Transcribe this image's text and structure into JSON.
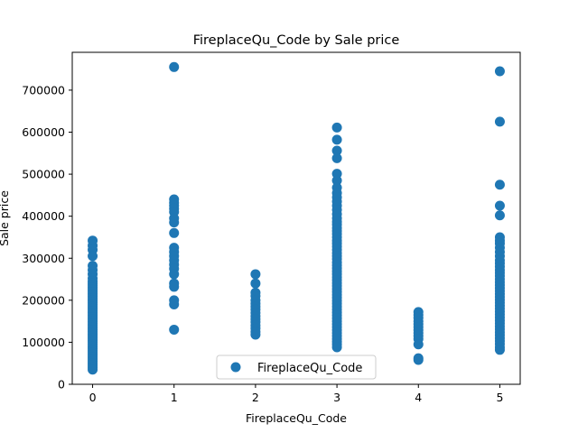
{
  "chart_data": {
    "type": "scatter",
    "title": "FireplaceQu_Code by Sale price",
    "xlabel": "FireplaceQu_Code",
    "ylabel": "Sale price",
    "xlim": [
      -0.25,
      5.25
    ],
    "ylim": [
      0,
      790000
    ],
    "x_ticks": [
      0,
      1,
      2,
      3,
      4,
      5
    ],
    "y_ticks": [
      0,
      100000,
      200000,
      300000,
      400000,
      500000,
      600000,
      700000
    ],
    "legend": {
      "label": "FireplaceQu_Code",
      "placement": "lower-center"
    },
    "marker_color": "#1f77b4",
    "grid": false,
    "series": [
      {
        "name": "FireplaceQu_Code",
        "points": [
          [
            0,
            342000
          ],
          [
            0,
            330000
          ],
          [
            0,
            320000
          ],
          [
            0,
            305000
          ],
          [
            0,
            282000
          ],
          [
            0,
            272000
          ],
          [
            0,
            262000
          ],
          [
            0,
            252000
          ],
          [
            0,
            245000
          ],
          [
            0,
            240000
          ],
          [
            0,
            235000
          ],
          [
            0,
            230000
          ],
          [
            0,
            225000
          ],
          [
            0,
            220000
          ],
          [
            0,
            215000
          ],
          [
            0,
            210000
          ],
          [
            0,
            205000
          ],
          [
            0,
            200000
          ],
          [
            0,
            195000
          ],
          [
            0,
            190000
          ],
          [
            0,
            185000
          ],
          [
            0,
            180000
          ],
          [
            0,
            175000
          ],
          [
            0,
            170000
          ],
          [
            0,
            165000
          ],
          [
            0,
            160000
          ],
          [
            0,
            155000
          ],
          [
            0,
            150000
          ],
          [
            0,
            145000
          ],
          [
            0,
            140000
          ],
          [
            0,
            135000
          ],
          [
            0,
            130000
          ],
          [
            0,
            125000
          ],
          [
            0,
            120000
          ],
          [
            0,
            115000
          ],
          [
            0,
            110000
          ],
          [
            0,
            105000
          ],
          [
            0,
            100000
          ],
          [
            0,
            95000
          ],
          [
            0,
            90000
          ],
          [
            0,
            85000
          ],
          [
            0,
            80000
          ],
          [
            0,
            75000
          ],
          [
            0,
            70000
          ],
          [
            0,
            65000
          ],
          [
            0,
            60000
          ],
          [
            0,
            55000
          ],
          [
            0,
            50000
          ],
          [
            0,
            45000
          ],
          [
            0,
            40000
          ],
          [
            0,
            35000
          ],
          [
            1,
            755000
          ],
          [
            1,
            440000
          ],
          [
            1,
            432000
          ],
          [
            1,
            425000
          ],
          [
            1,
            418000
          ],
          [
            1,
            410000
          ],
          [
            1,
            395000
          ],
          [
            1,
            385000
          ],
          [
            1,
            360000
          ],
          [
            1,
            325000
          ],
          [
            1,
            315000
          ],
          [
            1,
            305000
          ],
          [
            1,
            295000
          ],
          [
            1,
            285000
          ],
          [
            1,
            275000
          ],
          [
            1,
            262000
          ],
          [
            1,
            240000
          ],
          [
            1,
            232000
          ],
          [
            1,
            200000
          ],
          [
            1,
            190000
          ],
          [
            1,
            130000
          ],
          [
            2,
            262000
          ],
          [
            2,
            240000
          ],
          [
            2,
            218000
          ],
          [
            2,
            210000
          ],
          [
            2,
            200000
          ],
          [
            2,
            192000
          ],
          [
            2,
            185000
          ],
          [
            2,
            178000
          ],
          [
            2,
            170000
          ],
          [
            2,
            162000
          ],
          [
            2,
            155000
          ],
          [
            2,
            148000
          ],
          [
            2,
            140000
          ],
          [
            2,
            133000
          ],
          [
            2,
            125000
          ],
          [
            2,
            118000
          ],
          [
            3,
            611000
          ],
          [
            3,
            582000
          ],
          [
            3,
            556000
          ],
          [
            3,
            538000
          ],
          [
            3,
            501000
          ],
          [
            3,
            485000
          ],
          [
            3,
            468000
          ],
          [
            3,
            455000
          ],
          [
            3,
            445000
          ],
          [
            3,
            435000
          ],
          [
            3,
            425000
          ],
          [
            3,
            415000
          ],
          [
            3,
            405000
          ],
          [
            3,
            395000
          ],
          [
            3,
            387000
          ],
          [
            3,
            380000
          ],
          [
            3,
            372000
          ],
          [
            3,
            365000
          ],
          [
            3,
            358000
          ],
          [
            3,
            350000
          ],
          [
            3,
            342000
          ],
          [
            3,
            335000
          ],
          [
            3,
            328000
          ],
          [
            3,
            320000
          ],
          [
            3,
            312000
          ],
          [
            3,
            305000
          ],
          [
            3,
            298000
          ],
          [
            3,
            290000
          ],
          [
            3,
            283000
          ],
          [
            3,
            276000
          ],
          [
            3,
            269000
          ],
          [
            3,
            262000
          ],
          [
            3,
            255000
          ],
          [
            3,
            248000
          ],
          [
            3,
            241000
          ],
          [
            3,
            234000
          ],
          [
            3,
            227000
          ],
          [
            3,
            220000
          ],
          [
            3,
            213000
          ],
          [
            3,
            206000
          ],
          [
            3,
            199000
          ],
          [
            3,
            192000
          ],
          [
            3,
            185000
          ],
          [
            3,
            178000
          ],
          [
            3,
            171000
          ],
          [
            3,
            164000
          ],
          [
            3,
            157000
          ],
          [
            3,
            150000
          ],
          [
            3,
            143000
          ],
          [
            3,
            136000
          ],
          [
            3,
            129000
          ],
          [
            3,
            122000
          ],
          [
            3,
            115000
          ],
          [
            3,
            108000
          ],
          [
            3,
            101000
          ],
          [
            3,
            95000
          ],
          [
            3,
            88000
          ],
          [
            4,
            172000
          ],
          [
            4,
            165000
          ],
          [
            4,
            158000
          ],
          [
            4,
            150000
          ],
          [
            4,
            143000
          ],
          [
            4,
            136000
          ],
          [
            4,
            129000
          ],
          [
            4,
            122000
          ],
          [
            4,
            115000
          ],
          [
            4,
            108000
          ],
          [
            4,
            95000
          ],
          [
            4,
            62000
          ],
          [
            4,
            58000
          ],
          [
            5,
            745000
          ],
          [
            5,
            625000
          ],
          [
            5,
            475000
          ],
          [
            5,
            425000
          ],
          [
            5,
            402000
          ],
          [
            5,
            350000
          ],
          [
            5,
            342000
          ],
          [
            5,
            335000
          ],
          [
            5,
            325000
          ],
          [
            5,
            315000
          ],
          [
            5,
            305000
          ],
          [
            5,
            295000
          ],
          [
            5,
            288000
          ],
          [
            5,
            280000
          ],
          [
            5,
            272000
          ],
          [
            5,
            265000
          ],
          [
            5,
            258000
          ],
          [
            5,
            250000
          ],
          [
            5,
            243000
          ],
          [
            5,
            236000
          ],
          [
            5,
            229000
          ],
          [
            5,
            222000
          ],
          [
            5,
            215000
          ],
          [
            5,
            208000
          ],
          [
            5,
            201000
          ],
          [
            5,
            194000
          ],
          [
            5,
            187000
          ],
          [
            5,
            180000
          ],
          [
            5,
            173000
          ],
          [
            5,
            166000
          ],
          [
            5,
            159000
          ],
          [
            5,
            152000
          ],
          [
            5,
            145000
          ],
          [
            5,
            138000
          ],
          [
            5,
            131000
          ],
          [
            5,
            124000
          ],
          [
            5,
            117000
          ],
          [
            5,
            110000
          ],
          [
            5,
            103000
          ],
          [
            5,
            96000
          ],
          [
            5,
            88000
          ],
          [
            5,
            82000
          ]
        ]
      }
    ]
  }
}
